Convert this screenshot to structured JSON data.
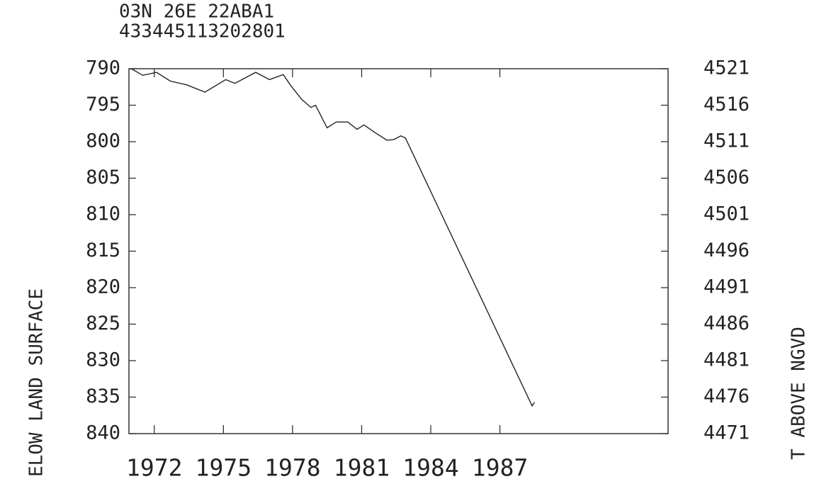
{
  "chart_data": {
    "type": "line",
    "title": "03N 26E 22ABA1",
    "subtitle": "433445113202801",
    "y_label": "ELOW LAND SURFACE",
    "y2_label": "T ABOVE NGVD",
    "x": [
      1971.0,
      1971.5,
      1972.1,
      1972.7,
      1973.4,
      1974.2,
      1975.1,
      1975.5,
      1976.4,
      1977.0,
      1977.6,
      1977.9,
      1978.4,
      1978.8,
      1979.0,
      1979.5,
      1979.9,
      1980.4,
      1980.8,
      1981.1,
      1981.6,
      1982.1,
      1982.4,
      1982.7,
      1982.9,
      1988.4,
      1988.5
    ],
    "series": [
      {
        "color": "#222222",
        "values": [
          790.0,
          790.9,
          790.5,
          791.7,
          792.2,
          793.2,
          791.5,
          792.0,
          790.5,
          791.5,
          790.8,
          792.2,
          794.2,
          795.3,
          795.0,
          798.1,
          797.3,
          797.3,
          798.3,
          797.7,
          798.8,
          799.8,
          799.7,
          799.2,
          799.5,
          836.2,
          835.7
        ]
      }
    ],
    "xlim": [
      1970.9,
      1994.3
    ],
    "xticks": [
      1972,
      1975,
      1978,
      1981,
      1984,
      1987
    ],
    "ylim": [
      840,
      790
    ],
    "yticks": [
      790,
      795,
      800,
      805,
      810,
      815,
      820,
      825,
      830,
      835,
      840
    ],
    "y2lim": [
      4471,
      4521
    ],
    "y2ticks": [
      4521,
      4516,
      4511,
      4506,
      4501,
      4496,
      4491,
      4486,
      4481,
      4476,
      4471
    ]
  }
}
